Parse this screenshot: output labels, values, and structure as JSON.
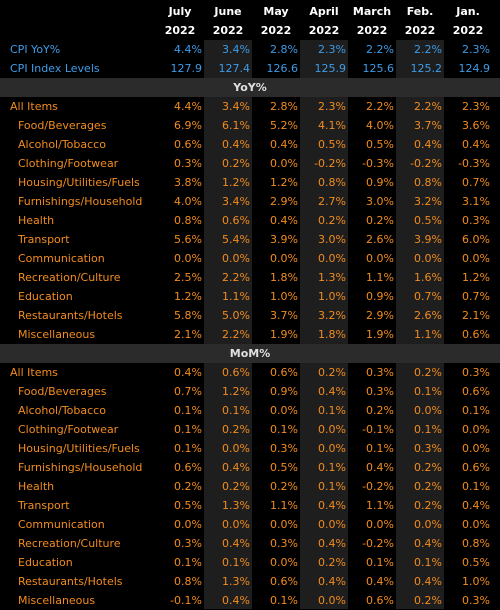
{
  "chart_data": {
    "type": "table",
    "columns": [
      {
        "month": "July",
        "year": "2022"
      },
      {
        "month": "June",
        "year": "2022"
      },
      {
        "month": "May",
        "year": "2022"
      },
      {
        "month": "April",
        "year": "2022"
      },
      {
        "month": "March",
        "year": "2022"
      },
      {
        "month": "Feb.",
        "year": "2022"
      },
      {
        "month": "Jan.",
        "year": "2022"
      }
    ],
    "top_rows": [
      {
        "label": "CPI YoY%",
        "values": [
          "4.4%",
          "3.4%",
          "2.8%",
          "2.3%",
          "2.2%",
          "2.2%",
          "2.3%"
        ]
      },
      {
        "label": "CPI Index Levels",
        "values": [
          "127.9",
          "127.4",
          "126.6",
          "125.9",
          "125.6",
          "125.2",
          "124.9"
        ]
      }
    ],
    "sections": [
      {
        "title": "YoY%",
        "rows": [
          {
            "label": "All Items",
            "sub": false,
            "values": [
              "4.4%",
              "3.4%",
              "2.8%",
              "2.3%",
              "2.2%",
              "2.2%",
              "2.3%"
            ]
          },
          {
            "label": "Food/Beverages",
            "sub": true,
            "values": [
              "6.9%",
              "6.1%",
              "5.2%",
              "4.1%",
              "4.0%",
              "3.7%",
              "3.6%"
            ]
          },
          {
            "label": "Alcohol/Tobacco",
            "sub": true,
            "values": [
              "0.6%",
              "0.4%",
              "0.4%",
              "0.5%",
              "0.5%",
              "0.4%",
              "0.4%"
            ]
          },
          {
            "label": "Clothing/Footwear",
            "sub": true,
            "values": [
              "0.3%",
              "0.2%",
              "0.0%",
              "-0.2%",
              "-0.3%",
              "-0.2%",
              "-0.3%"
            ]
          },
          {
            "label": "Housing/Utilities/Fuels",
            "sub": true,
            "values": [
              "3.8%",
              "1.2%",
              "1.2%",
              "0.8%",
              "0.9%",
              "0.8%",
              "0.7%"
            ]
          },
          {
            "label": "Furnishings/Household",
            "sub": true,
            "values": [
              "4.0%",
              "3.4%",
              "2.9%",
              "2.7%",
              "3.0%",
              "3.2%",
              "3.1%"
            ]
          },
          {
            "label": "Health",
            "sub": true,
            "values": [
              "0.8%",
              "0.6%",
              "0.4%",
              "0.2%",
              "0.2%",
              "0.5%",
              "0.3%"
            ]
          },
          {
            "label": "Transport",
            "sub": true,
            "values": [
              "5.6%",
              "5.4%",
              "3.9%",
              "3.0%",
              "2.6%",
              "3.9%",
              "6.0%"
            ]
          },
          {
            "label": "Communication",
            "sub": true,
            "values": [
              "0.0%",
              "0.0%",
              "0.0%",
              "0.0%",
              "0.0%",
              "0.0%",
              "0.0%"
            ]
          },
          {
            "label": "Recreation/Culture",
            "sub": true,
            "values": [
              "2.5%",
              "2.2%",
              "1.8%",
              "1.3%",
              "1.1%",
              "1.6%",
              "1.2%"
            ]
          },
          {
            "label": "Education",
            "sub": true,
            "values": [
              "1.2%",
              "1.1%",
              "1.0%",
              "1.0%",
              "0.9%",
              "0.7%",
              "0.7%"
            ]
          },
          {
            "label": "Restaurants/Hotels",
            "sub": true,
            "values": [
              "5.8%",
              "5.0%",
              "3.7%",
              "3.2%",
              "2.9%",
              "2.6%",
              "2.1%"
            ]
          },
          {
            "label": "Miscellaneous",
            "sub": true,
            "values": [
              "2.1%",
              "2.2%",
              "1.9%",
              "1.8%",
              "1.9%",
              "1.1%",
              "0.6%"
            ]
          }
        ]
      },
      {
        "title": "MoM%",
        "rows": [
          {
            "label": "All Items",
            "sub": false,
            "values": [
              "0.4%",
              "0.6%",
              "0.6%",
              "0.2%",
              "0.3%",
              "0.2%",
              "0.3%"
            ]
          },
          {
            "label": "Food/Beverages",
            "sub": true,
            "values": [
              "0.7%",
              "1.2%",
              "0.9%",
              "0.4%",
              "0.3%",
              "0.1%",
              "0.6%"
            ]
          },
          {
            "label": "Alcohol/Tobacco",
            "sub": true,
            "values": [
              "0.1%",
              "0.1%",
              "0.0%",
              "0.1%",
              "0.2%",
              "0.0%",
              "0.1%"
            ]
          },
          {
            "label": "Clothing/Footwear",
            "sub": true,
            "values": [
              "0.1%",
              "0.2%",
              "0.1%",
              "0.0%",
              "-0.1%",
              "0.1%",
              "0.0%"
            ]
          },
          {
            "label": "Housing/Utilities/Fuels",
            "sub": true,
            "values": [
              "0.1%",
              "0.0%",
              "0.3%",
              "0.0%",
              "0.1%",
              "0.3%",
              "0.0%"
            ]
          },
          {
            "label": "Furnishings/Household",
            "sub": true,
            "values": [
              "0.6%",
              "0.4%",
              "0.5%",
              "0.1%",
              "0.4%",
              "0.2%",
              "0.6%"
            ]
          },
          {
            "label": "Health",
            "sub": true,
            "values": [
              "0.2%",
              "0.2%",
              "0.2%",
              "0.1%",
              "-0.2%",
              "0.2%",
              "0.1%"
            ]
          },
          {
            "label": "Transport",
            "sub": true,
            "values": [
              "0.5%",
              "1.3%",
              "1.1%",
              "0.4%",
              "1.1%",
              "0.2%",
              "0.4%"
            ]
          },
          {
            "label": "Communication",
            "sub": true,
            "values": [
              "0.0%",
              "0.0%",
              "0.0%",
              "0.0%",
              "0.0%",
              "0.0%",
              "0.0%"
            ]
          },
          {
            "label": "Recreation/Culture",
            "sub": true,
            "values": [
              "0.3%",
              "0.4%",
              "0.3%",
              "0.4%",
              "-0.2%",
              "0.4%",
              "0.8%"
            ]
          },
          {
            "label": "Education",
            "sub": true,
            "values": [
              "0.1%",
              "0.1%",
              "0.0%",
              "0.2%",
              "0.1%",
              "0.1%",
              "0.5%"
            ]
          },
          {
            "label": "Restaurants/Hotels",
            "sub": true,
            "values": [
              "0.8%",
              "1.3%",
              "0.6%",
              "0.4%",
              "0.4%",
              "0.4%",
              "1.0%"
            ]
          },
          {
            "label": "Miscellaneous",
            "sub": true,
            "values": [
              "-0.1%",
              "0.4%",
              "0.1%",
              "0.0%",
              "0.6%",
              "0.2%",
              "0.3%"
            ]
          }
        ]
      }
    ]
  },
  "colors": {
    "value_text": "#f28c1e",
    "header_text": "#ffffff",
    "blue_rows": "#3d9ce8",
    "section_bg": "#2b2b2b",
    "background": "#000000"
  }
}
